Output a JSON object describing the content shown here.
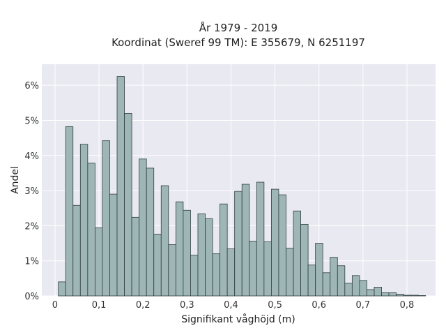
{
  "chart_data": {
    "type": "bar",
    "title": "År 1979 - 2019",
    "subtitle": "Koordinat (Sweref 99 TM): E 355679, N 6251197",
    "xlabel": "Signifikant våghöjd (m)",
    "ylabel": "Andel",
    "xlim": [
      -0.03,
      0.865
    ],
    "ylim": [
      0,
      6.6
    ],
    "x_ticks": [
      {
        "value": 0.0,
        "label": "0"
      },
      {
        "value": 0.1,
        "label": "0,1"
      },
      {
        "value": 0.2,
        "label": "0,2"
      },
      {
        "value": 0.3,
        "label": "0,3"
      },
      {
        "value": 0.4,
        "label": "0,4"
      },
      {
        "value": 0.5,
        "label": "0,5"
      },
      {
        "value": 0.6,
        "label": "0,6"
      },
      {
        "value": 0.7,
        "label": "0,7"
      },
      {
        "value": 0.8,
        "label": "0,8"
      }
    ],
    "y_ticks": [
      {
        "value": 0,
        "label": "0%"
      },
      {
        "value": 1,
        "label": "1%"
      },
      {
        "value": 2,
        "label": "2%"
      },
      {
        "value": 3,
        "label": "3%"
      },
      {
        "value": 4,
        "label": "4%"
      },
      {
        "value": 5,
        "label": "5%"
      },
      {
        "value": 6,
        "label": "6%"
      }
    ],
    "bin_width": 0.0167,
    "bin_start": 0.0075,
    "values": [
      0.4,
      4.82,
      2.58,
      4.32,
      3.78,
      1.94,
      4.42,
      2.9,
      6.25,
      5.2,
      2.24,
      3.9,
      3.64,
      1.76,
      3.14,
      1.46,
      2.68,
      2.44,
      1.16,
      2.34,
      2.2,
      1.2,
      2.62,
      1.34,
      2.98,
      3.18,
      1.56,
      3.24,
      1.54,
      3.04,
      2.88,
      1.36,
      2.42,
      2.04,
      0.88,
      1.5,
      0.66,
      1.1,
      0.86,
      0.36,
      0.58,
      0.44,
      0.18,
      0.25,
      0.09,
      0.09,
      0.05,
      0.02,
      0.02,
      0.01
    ],
    "grid": true,
    "bar_color": "#9fb6b6",
    "background_color": "#e9e9f1"
  }
}
